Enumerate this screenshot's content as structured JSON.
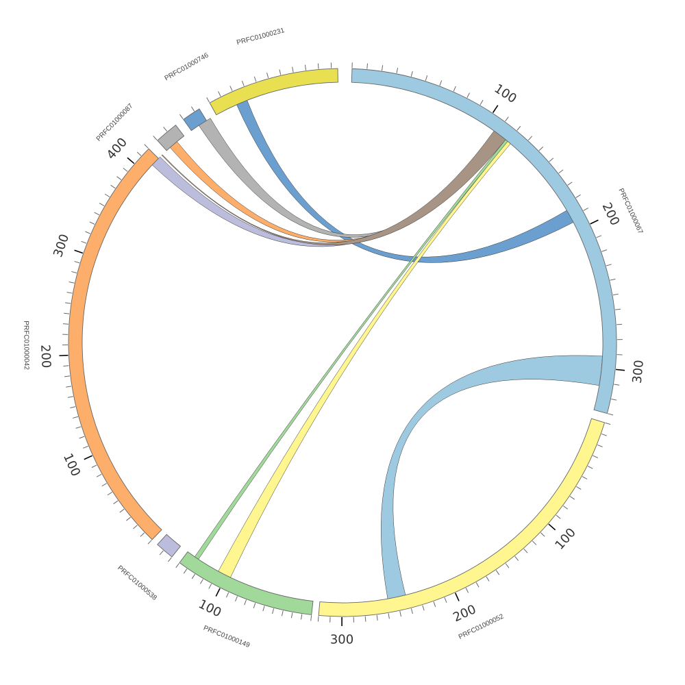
{
  "chart_data": {
    "type": "chord",
    "segments": [
      {
        "name": "PRFC01000067",
        "length": 330,
        "color": "#9ecae1",
        "start_angle_deg": 2,
        "end_angle_deg": 105,
        "major_ticks": [
          100,
          200,
          300
        ]
      },
      {
        "name": "PRFC01000052",
        "length": 320,
        "color": "#fff68f",
        "start_angle_deg": 107,
        "end_angle_deg": 185,
        "major_ticks": [
          100,
          200,
          300
        ]
      },
      {
        "name": "PRFC01000149",
        "length": 150,
        "color": "#a1d99b",
        "start_angle_deg": 186.5,
        "end_angle_deg": 216.5,
        "major_ticks": [
          100
        ]
      },
      {
        "name": "PRFC01000538",
        "length": 18,
        "color": "#bcbddc",
        "start_angle_deg": 218.5,
        "end_angle_deg": 222.5,
        "major_ticks": []
      },
      {
        "name": "PRFC01000042",
        "length": 420,
        "color": "#fdae6b",
        "start_angle_deg": 224,
        "end_angle_deg": 315,
        "major_ticks": [
          100,
          200,
          300,
          400
        ]
      },
      {
        "name": "PRFC01000087",
        "length": 18,
        "color": "#b3b3b3",
        "start_angle_deg": 317.5,
        "end_angle_deg": 322.5,
        "major_ticks": []
      },
      {
        "name": "PRFC01000746",
        "length": 14,
        "color": "#6a9fcf",
        "start_angle_deg": 324.5,
        "end_angle_deg": 328.5,
        "major_ticks": []
      },
      {
        "name": "PRFC01000231",
        "length": 105,
        "color": "#e8e050",
        "start_angle_deg": 331,
        "end_angle_deg": 359,
        "major_ticks": []
      }
    ],
    "links": [
      {
        "from": "PRFC01000067",
        "to": "PRFC01000052",
        "color": "#9ecae1",
        "a": [
          93,
          99.5
        ],
        "b": [
          166,
          170
        ]
      },
      {
        "from": "PRFC01000231",
        "to": "PRFC01000067",
        "color": "#6a9fcf",
        "a": [
          336,
          338.5
        ],
        "b": [
          59.5,
          62.5
        ]
      },
      {
        "from": "PRFC01000087",
        "to": "PRFC01000067",
        "color": "#b3b3b3",
        "a": [
          326.5,
          329.5
        ],
        "b": [
          37.2,
          38.4
        ]
      },
      {
        "from": "PRFC01000042",
        "to": "PRFC01000067",
        "color": "#fdae6b",
        "a": [
          318.5,
          320.5
        ],
        "b": [
          36.8,
          37.2
        ]
      },
      {
        "from": "PRFC01000042",
        "to": "PRFC01000067",
        "color": "#bcbddc",
        "a": [
          313,
          315.5
        ],
        "b": [
          36.2,
          36.8
        ]
      },
      {
        "from": "PRFC01000042",
        "to": "PRFC01000067",
        "color": "#a89484",
        "a": [
          316,
          316.2
        ],
        "b": [
          35.6,
          38.8
        ]
      },
      {
        "from": "PRFC01000149",
        "to": "PRFC01000067",
        "color": "#a1d99b",
        "a": [
          213.6,
          214.6
        ],
        "b": [
          38.8,
          39.4
        ]
      },
      {
        "from": "PRFC01000149",
        "to": "PRFC01000067",
        "color": "#fff68f",
        "a": [
          205.5,
          208.5
        ],
        "b": [
          39.4,
          40.2
        ]
      }
    ],
    "title": "",
    "xlabel": "",
    "ylabel": ""
  }
}
